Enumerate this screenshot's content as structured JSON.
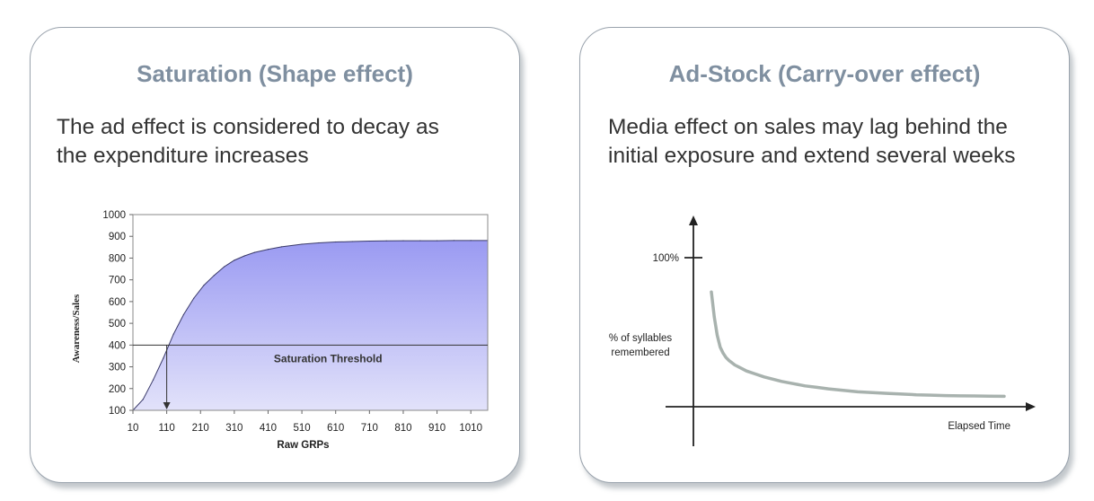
{
  "panels": [
    {
      "title": "Saturation (Shape effect)",
      "description": "The ad effect is considered to decay as\nthe expenditure increases"
    },
    {
      "title": "Ad-Stock (Carry-over effect)",
      "description": "Media effect on sales may lag behind the\ninitial exposure and extend several weeks"
    }
  ],
  "chart_data": [
    {
      "type": "area",
      "title": "",
      "xlabel": "Raw GRPs",
      "ylabel": "Awareness/Sales",
      "xlim": [
        10,
        1060
      ],
      "ylim": [
        100,
        1000
      ],
      "x_ticks": [
        "10",
        "110",
        "210",
        "310",
        "410",
        "510",
        "610",
        "710",
        "810",
        "910",
        "1010"
      ],
      "y_ticks": [
        "100",
        "200",
        "300",
        "400",
        "500",
        "600",
        "700",
        "800",
        "900",
        "1000"
      ],
      "grid": false,
      "fill_color_top": "#9a9af2",
      "fill_color_bottom": "#e2e2fa",
      "series": [
        {
          "x": [
            10,
            40,
            70,
            100,
            130,
            160,
            190,
            220,
            250,
            280,
            310,
            340,
            370,
            410,
            450,
            510,
            560,
            610,
            660,
            710,
            760,
            810,
            860,
            910,
            960,
            1010,
            1060
          ],
          "y": [
            100,
            150,
            240,
            340,
            450,
            540,
            615,
            675,
            720,
            760,
            790,
            810,
            826,
            840,
            852,
            864,
            870,
            874,
            876,
            878,
            879,
            880,
            880,
            880,
            881,
            881,
            881
          ]
        }
      ],
      "threshold": {
        "y": 400,
        "label": "Saturation Threshold"
      },
      "threshold_crossing_x": 110
    },
    {
      "type": "line",
      "title": "",
      "xlabel": "Elapsed Time",
      "ylabel": "% of syllables remembered",
      "y_tick_label": "100%",
      "line_color": "#a8b2ae",
      "series": [
        {
          "x": [
            0,
            1,
            2,
            3,
            4,
            5,
            6,
            8,
            10,
            12,
            15,
            18,
            21,
            24,
            28,
            32,
            36,
            40,
            45,
            50,
            55,
            60,
            65,
            70,
            75,
            80,
            85,
            90,
            95,
            100
          ],
          "y": [
            77,
            60,
            48,
            40,
            36,
            33,
            31,
            28,
            26,
            24,
            22,
            20,
            18.5,
            17,
            15.5,
            14,
            13,
            12,
            11,
            10,
            9.5,
            9,
            8.5,
            8,
            7.8,
            7.5,
            7.3,
            7.2,
            7.1,
            7
          ]
        }
      ]
    }
  ]
}
